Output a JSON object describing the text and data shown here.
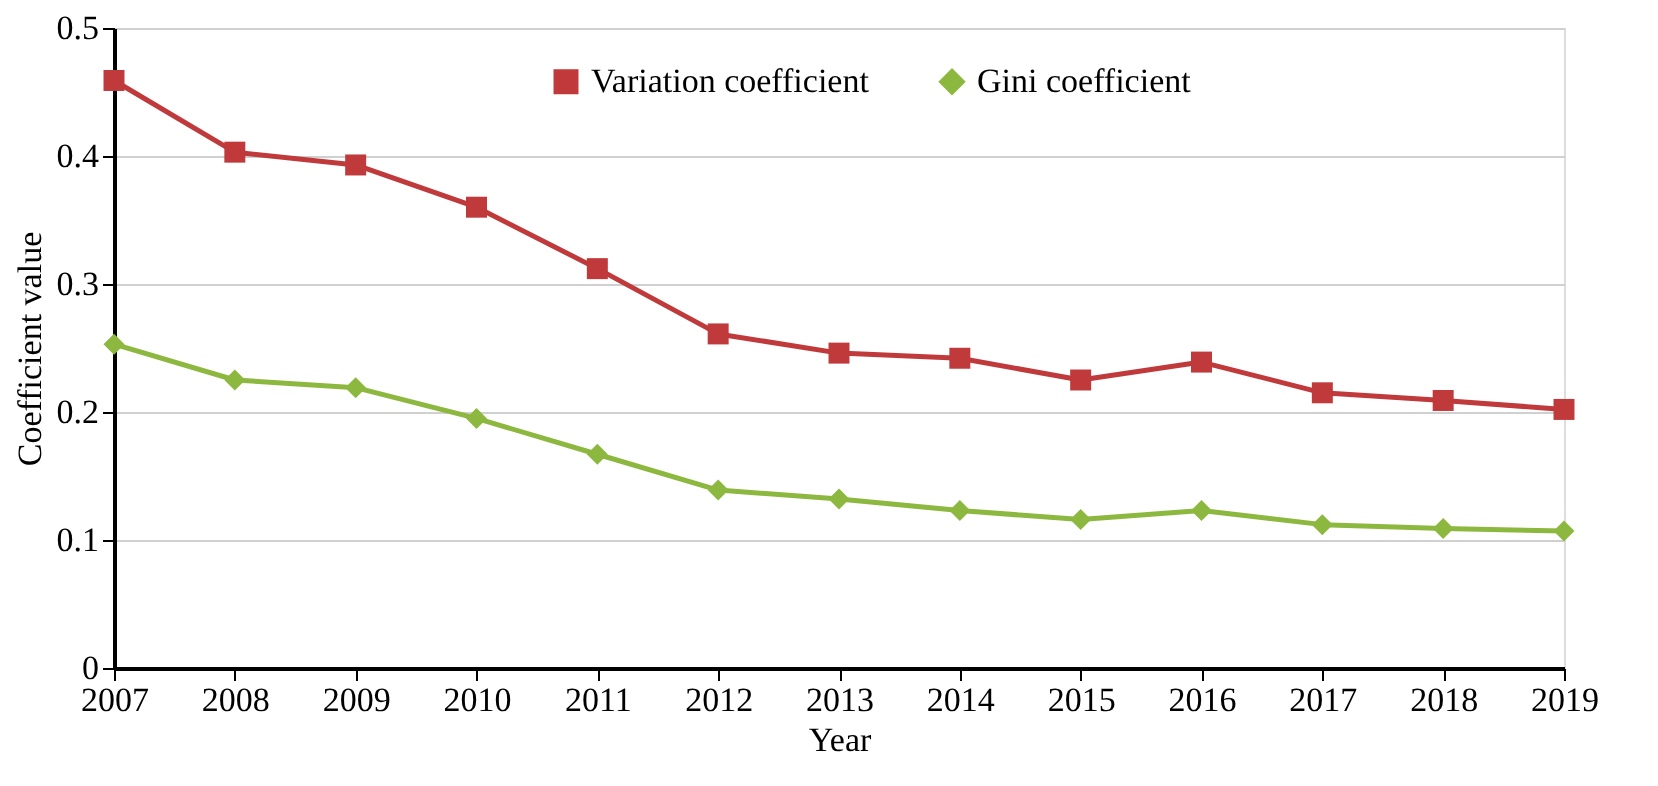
{
  "chart_data": {
    "type": "line",
    "xlabel": "Year",
    "ylabel": "Coefficient  value",
    "x": [
      2007,
      2008,
      2009,
      2010,
      2011,
      2012,
      2013,
      2014,
      2015,
      2016,
      2017,
      2018,
      2019
    ],
    "xlim": [
      2007,
      2019
    ],
    "xticks": [
      2007,
      2008,
      2009,
      2010,
      2011,
      2012,
      2013,
      2014,
      2015,
      2016,
      2017,
      2018,
      2019
    ],
    "ylim": [
      0,
      0.5
    ],
    "yticks": [
      0,
      0.1,
      0.2,
      0.3,
      0.4,
      0.5
    ],
    "grid": "y",
    "legend": "top",
    "line_style": "solid",
    "series": [
      {
        "name": "Variation coefficient",
        "color": "#c0393b",
        "marker": "square",
        "values": [
          0.459,
          0.403,
          0.393,
          0.36,
          0.312,
          0.261,
          0.246,
          0.242,
          0.225,
          0.239,
          0.215,
          0.209,
          0.202
        ]
      },
      {
        "name": "Gini coefficient",
        "color": "#8db83f",
        "marker": "diamond",
        "values": [
          0.253,
          0.225,
          0.219,
          0.195,
          0.167,
          0.139,
          0.132,
          0.123,
          0.116,
          0.123,
          0.112,
          0.109,
          0.107
        ]
      }
    ]
  }
}
